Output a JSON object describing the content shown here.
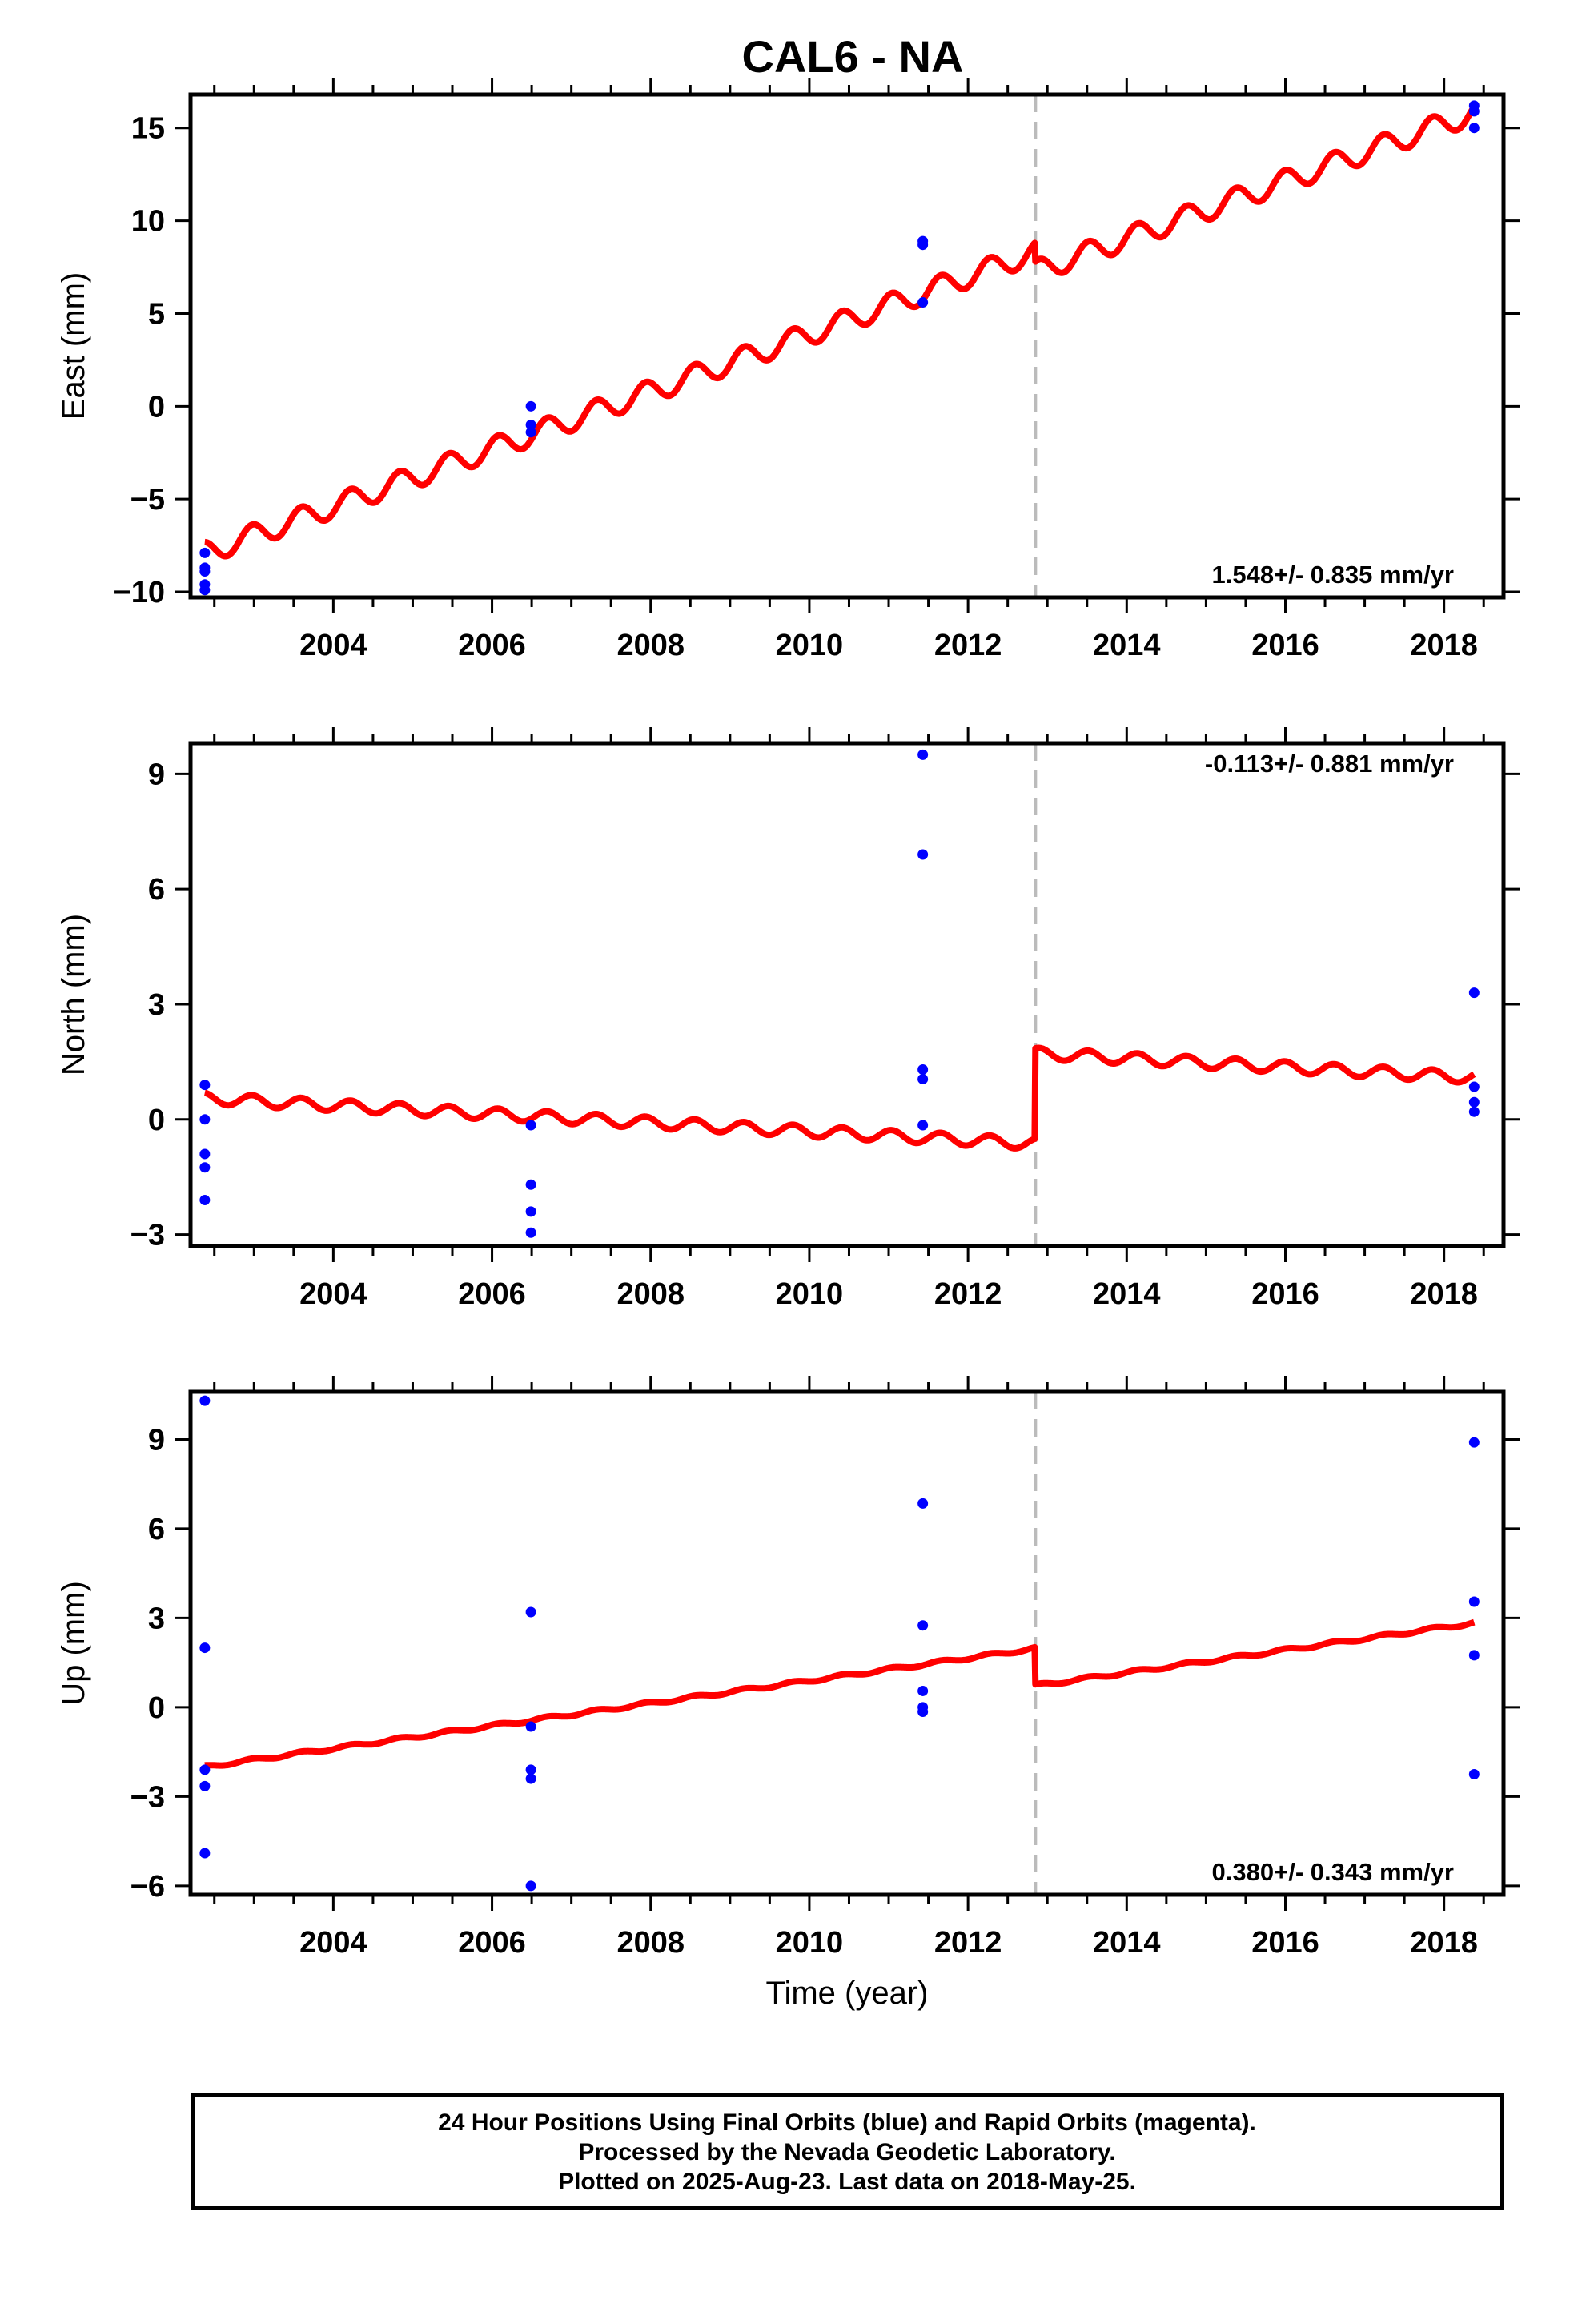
{
  "page": {
    "title": "CAL6 - NA",
    "footer": {
      "lines": [
        "24 Hour Positions Using Final Orbits (blue) and Rapid Orbits (magenta).",
        "Processed by the Nevada Geodetic Laboratory.",
        "Plotted on 2025-Aug-23. Last data on 2018-May-25."
      ]
    }
  },
  "colors": {
    "final_orbits": "#0000ff",
    "model_fit": "#ff0000",
    "event_line": "#bbbbbb",
    "frame": "#000000"
  },
  "chart_data": [
    {
      "type": "scatter",
      "panel": "east",
      "title": "CAL6 - NA",
      "xlabel": "",
      "ylabel": "East (mm)",
      "xlim": [
        2002.2,
        2018.75
      ],
      "ylim": [
        -10.3,
        16.8
      ],
      "xticks": [
        2004,
        2006,
        2008,
        2010,
        2012,
        2014,
        2016,
        2018
      ],
      "xtick_labels": [
        "2004",
        "2006",
        "2008",
        "2010",
        "2012",
        "2014",
        "2016",
        "2018"
      ],
      "yticks": [
        -10,
        -5,
        0,
        5,
        10,
        15
      ],
      "ytick_labels": [
        "−10",
        "−5",
        "0",
        "5",
        "10",
        "15"
      ],
      "grid": false,
      "rate_text": "1.548+/- 0.835 mm/yr",
      "rate_position": "bottom-right",
      "event_line_x": 2012.85,
      "points": [
        {
          "x": 2002.38,
          "y": -7.9
        },
        {
          "x": 2002.38,
          "y": -8.7
        },
        {
          "x": 2002.38,
          "y": -8.9
        },
        {
          "x": 2002.38,
          "y": -9.6
        },
        {
          "x": 2002.38,
          "y": -9.9
        },
        {
          "x": 2006.49,
          "y": 0.0
        },
        {
          "x": 2006.49,
          "y": -1.0
        },
        {
          "x": 2006.49,
          "y": -1.4
        },
        {
          "x": 2011.43,
          "y": 8.9
        },
        {
          "x": 2011.43,
          "y": 8.7
        },
        {
          "x": 2011.43,
          "y": 5.6
        },
        {
          "x": 2018.38,
          "y": 16.2
        },
        {
          "x": 2018.38,
          "y": 15.9
        },
        {
          "x": 2018.38,
          "y": 15.0
        }
      ],
      "model": {
        "start": 2002.38,
        "end": 2018.38,
        "intercept_at_start": -7.9,
        "trend": 1.548,
        "amplitude": 0.6,
        "period": 0.62,
        "phase_offset": 2002.2,
        "offsets": [
          {
            "at": 2012.85,
            "delta": -1.05
          }
        ]
      }
    },
    {
      "type": "scatter",
      "panel": "north",
      "xlabel": "",
      "ylabel": "North (mm)",
      "xlim": [
        2002.2,
        2018.75
      ],
      "ylim": [
        -3.3,
        9.8
      ],
      "xticks": [
        2004,
        2006,
        2008,
        2010,
        2012,
        2014,
        2016,
        2018
      ],
      "xtick_labels": [
        "2004",
        "2006",
        "2008",
        "2010",
        "2012",
        "2014",
        "2016",
        "2018"
      ],
      "yticks": [
        -3,
        0,
        3,
        6,
        9
      ],
      "ytick_labels": [
        "−3",
        "0",
        "3",
        "6",
        "9"
      ],
      "grid": false,
      "rate_text": "-0.113+/- 0.881 mm/yr",
      "rate_position": "top-right",
      "event_line_x": 2012.85,
      "points": [
        {
          "x": 2002.38,
          "y": 0.9
        },
        {
          "x": 2002.38,
          "y": 0.0
        },
        {
          "x": 2002.38,
          "y": -0.9
        },
        {
          "x": 2002.38,
          "y": -1.25
        },
        {
          "x": 2002.38,
          "y": -2.1
        },
        {
          "x": 2006.49,
          "y": -0.15
        },
        {
          "x": 2006.49,
          "y": -1.7
        },
        {
          "x": 2006.49,
          "y": -2.4
        },
        {
          "x": 2006.49,
          "y": -2.95
        },
        {
          "x": 2011.43,
          "y": 9.5
        },
        {
          "x": 2011.43,
          "y": 6.9
        },
        {
          "x": 2011.43,
          "y": 1.3
        },
        {
          "x": 2011.43,
          "y": 1.05
        },
        {
          "x": 2011.43,
          "y": -0.15
        },
        {
          "x": 2018.38,
          "y": 3.3
        },
        {
          "x": 2018.38,
          "y": 0.85
        },
        {
          "x": 2018.38,
          "y": 0.45
        },
        {
          "x": 2018.38,
          "y": 0.2
        }
      ],
      "model": {
        "start": 2002.38,
        "end": 2018.38,
        "intercept_at_start": 0.55,
        "trend": -0.113,
        "amplitude": 0.15,
        "period": 0.62,
        "phase_offset": 2002.2,
        "offsets": [
          {
            "at": 2012.85,
            "delta": 2.35
          }
        ]
      }
    },
    {
      "type": "scatter",
      "panel": "up",
      "xlabel": "Time (year)",
      "ylabel": "Up (mm)",
      "xlim": [
        2002.2,
        2018.75
      ],
      "ylim": [
        -6.3,
        10.6
      ],
      "xticks": [
        2004,
        2006,
        2008,
        2010,
        2012,
        2014,
        2016,
        2018
      ],
      "xtick_labels": [
        "2004",
        "2006",
        "2008",
        "2010",
        "2012",
        "2014",
        "2016",
        "2018"
      ],
      "yticks": [
        -6,
        -3,
        0,
        3,
        6,
        9
      ],
      "ytick_labels": [
        "−6",
        "−3",
        "0",
        "3",
        "6",
        "9"
      ],
      "grid": false,
      "rate_text": "0.380+/- 0.343 mm/yr",
      "rate_position": "bottom-right",
      "event_line_x": 2012.85,
      "points": [
        {
          "x": 2002.38,
          "y": 10.3
        },
        {
          "x": 2002.38,
          "y": 2.0
        },
        {
          "x": 2002.38,
          "y": -2.1
        },
        {
          "x": 2002.38,
          "y": -2.65
        },
        {
          "x": 2002.38,
          "y": -4.9
        },
        {
          "x": 2006.49,
          "y": 3.2
        },
        {
          "x": 2006.49,
          "y": -0.65
        },
        {
          "x": 2006.49,
          "y": -2.1
        },
        {
          "x": 2006.49,
          "y": -2.4
        },
        {
          "x": 2006.49,
          "y": -6.0
        },
        {
          "x": 2011.43,
          "y": 6.85
        },
        {
          "x": 2011.43,
          "y": 2.75
        },
        {
          "x": 2011.43,
          "y": 0.55
        },
        {
          "x": 2011.43,
          "y": 0.0
        },
        {
          "x": 2011.43,
          "y": -0.15
        },
        {
          "x": 2018.38,
          "y": 8.9
        },
        {
          "x": 2018.38,
          "y": 3.55
        },
        {
          "x": 2018.38,
          "y": 1.75
        },
        {
          "x": 2018.38,
          "y": -2.25
        }
      ],
      "model": {
        "start": 2002.38,
        "end": 2018.38,
        "intercept_at_start": -2.0,
        "trend": 0.38,
        "amplitude": 0.05,
        "period": 0.62,
        "phase_offset": 2002.2,
        "offsets": [
          {
            "at": 2012.85,
            "delta": -1.25
          }
        ]
      }
    }
  ]
}
